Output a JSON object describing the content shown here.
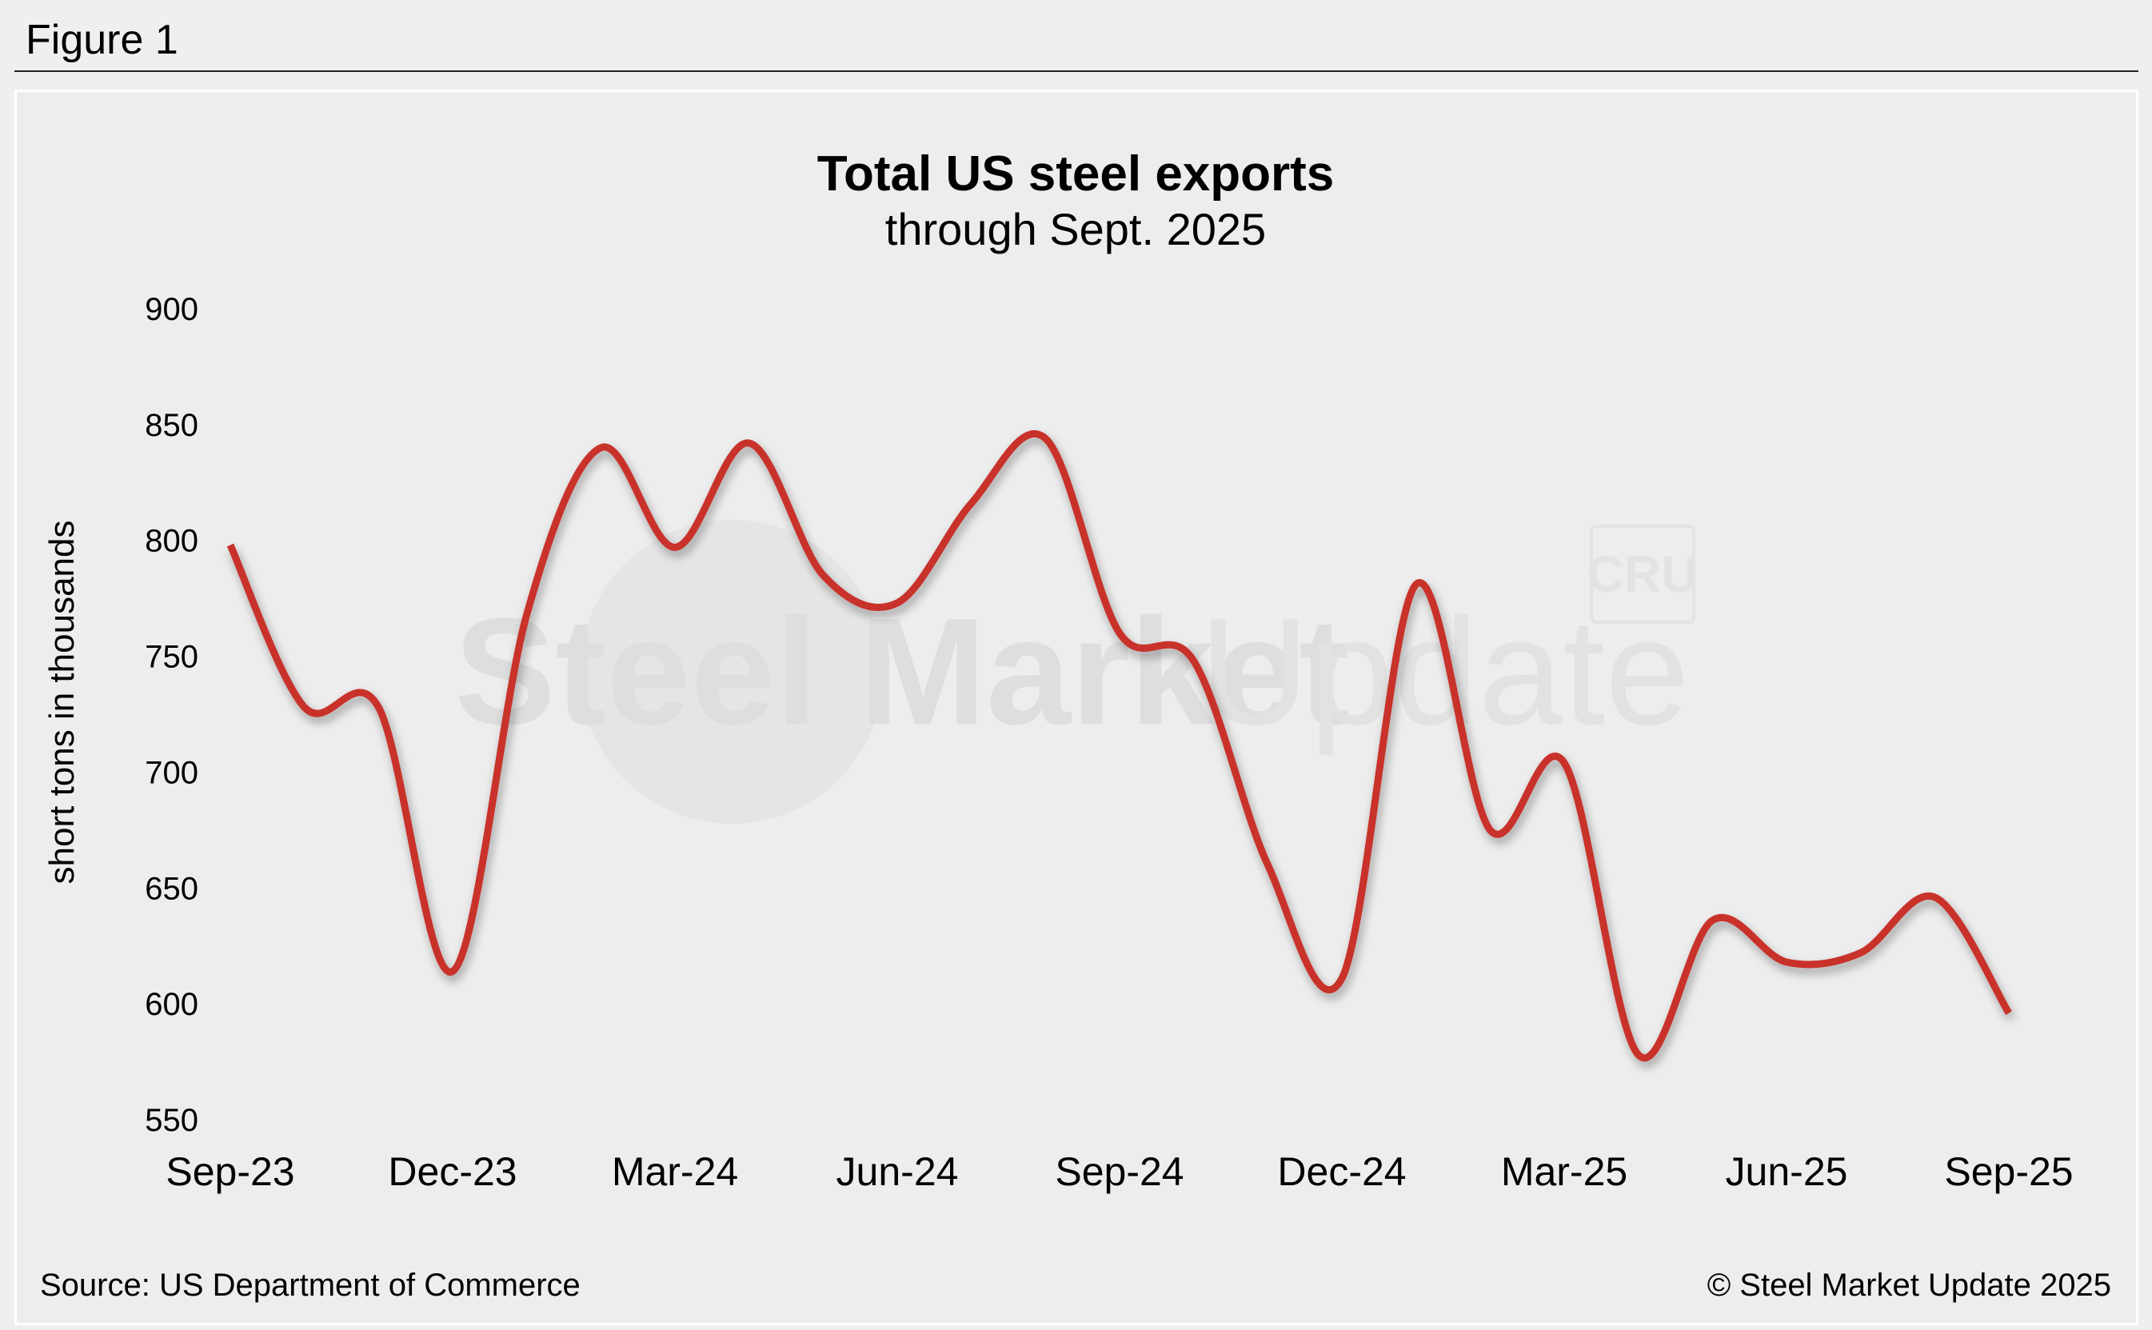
{
  "figure_label": "Figure 1",
  "footer": {
    "source": "Source: US Department of Commerce",
    "copyright": "© Steel Market Update 2025"
  },
  "watermark": {
    "text_bold": "Steel Market",
    "text_light": "Update",
    "badge": "CRU"
  },
  "colors": {
    "line": "#c8302a",
    "background": "#ededed"
  },
  "chart_data": {
    "type": "line",
    "title": "Total US steel exports",
    "subtitle": "through Sept. 2025",
    "xlabel": "",
    "ylabel": "short tons in thousands",
    "ylim": [
      550,
      900
    ],
    "yticks": [
      900,
      850,
      800,
      750,
      700,
      650,
      600,
      550
    ],
    "xtick_labels": [
      "Sep-23",
      "Dec-23",
      "Mar-24",
      "Jun-24",
      "Sep-24",
      "Dec-24",
      "Mar-25",
      "Jun-25",
      "Sep-25"
    ],
    "grid": false,
    "legend": "none",
    "x": [
      "Sep-23",
      "Oct-23",
      "Nov-23",
      "Dec-23",
      "Jan-24",
      "Feb-24",
      "Mar-24",
      "Apr-24",
      "May-24",
      "Jun-24",
      "Jul-24",
      "Aug-24",
      "Sep-24",
      "Oct-24",
      "Nov-24",
      "Dec-24",
      "Jan-25",
      "Feb-25",
      "Mar-25",
      "Apr-25",
      "May-25",
      "Jun-25",
      "Jul-25",
      "Aug-25",
      "Sep-25"
    ],
    "series": [
      {
        "values": [
          798,
          728,
          728,
          614,
          768,
          840,
          797,
          842,
          785,
          773,
          816,
          844,
          760,
          748,
          660,
          611,
          781,
          675,
          704,
          578,
          636,
          618,
          622,
          646,
          596
        ]
      }
    ]
  }
}
